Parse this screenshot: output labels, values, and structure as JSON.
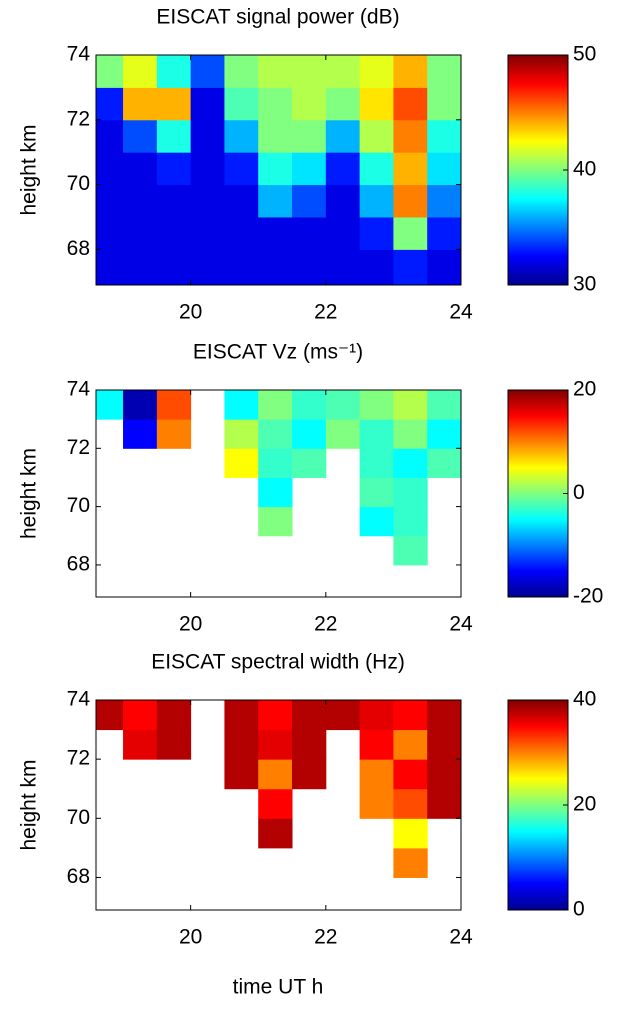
{
  "chart_data": [
    {
      "type": "heatmap",
      "title": "EISCAT signal power (dB)",
      "ylabel": "height km",
      "colormap": "jet",
      "xbins": [
        18.6,
        19,
        19.5,
        20,
        20.5,
        21,
        21.5,
        22,
        22.5,
        23,
        23.5,
        24
      ],
      "ybins": [
        66.9,
        68,
        69,
        70,
        71,
        72,
        73,
        74
      ],
      "z": [
        [
          32,
          32,
          32,
          32,
          32,
          32,
          32,
          32,
          32,
          33,
          32
        ],
        [
          32,
          32,
          32,
          32,
          32,
          32,
          32,
          32,
          33,
          40,
          33
        ],
        [
          32,
          32,
          32,
          32,
          32,
          36,
          34,
          32,
          36,
          45,
          35
        ],
        [
          32,
          32,
          33,
          32,
          33,
          38,
          37,
          33,
          38,
          44,
          37
        ],
        [
          32,
          34,
          38,
          32,
          36,
          40,
          40,
          36,
          41,
          45,
          38
        ],
        [
          33,
          44,
          44,
          32,
          39,
          40,
          41,
          40,
          43,
          46,
          40
        ],
        [
          40,
          42,
          38,
          34,
          40,
          41,
          41,
          41,
          42,
          44,
          40
        ]
      ],
      "xlim": [
        18.6,
        24
      ],
      "ylim": [
        66.9,
        74
      ],
      "xticks": [
        20,
        22,
        24
      ],
      "yticks": [
        68,
        70,
        72,
        74
      ],
      "clim": [
        30,
        50
      ],
      "cticks": [
        30,
        40,
        50
      ]
    },
    {
      "type": "heatmap",
      "title": "EISCAT Vz (ms⁻¹)",
      "ylabel": "height km",
      "colormap": "jet",
      "xbins": [
        18.6,
        19,
        19.5,
        20,
        20.5,
        21,
        21.5,
        22,
        22.5,
        23,
        23.5,
        24
      ],
      "ybins": [
        66.9,
        68,
        69,
        70,
        71,
        72,
        73,
        74
      ],
      "z": [
        [
          null,
          null,
          null,
          null,
          null,
          null,
          null,
          null,
          null,
          null,
          null
        ],
        [
          null,
          null,
          null,
          null,
          null,
          null,
          null,
          null,
          null,
          -2,
          null
        ],
        [
          null,
          null,
          null,
          null,
          null,
          0,
          null,
          null,
          -5,
          -3,
          null
        ],
        [
          null,
          null,
          null,
          null,
          null,
          -5,
          null,
          null,
          -2,
          -3,
          null
        ],
        [
          null,
          null,
          null,
          null,
          5,
          -3,
          -2,
          null,
          -3,
          -5,
          -2
        ],
        [
          null,
          -15,
          10,
          null,
          2,
          -2,
          -5,
          0,
          -3,
          0,
          -5
        ],
        [
          -5,
          -18,
          12,
          null,
          -5,
          0,
          -3,
          -2,
          0,
          2,
          -2
        ]
      ],
      "xlim": [
        18.6,
        24
      ],
      "ylim": [
        66.9,
        74
      ],
      "xticks": [
        20,
        22,
        24
      ],
      "yticks": [
        68,
        70,
        72,
        74
      ],
      "clim": [
        -20,
        20
      ],
      "cticks": [
        -20,
        0,
        20
      ]
    },
    {
      "type": "heatmap",
      "title": "EISCAT spectral width (Hz)",
      "ylabel": "height km",
      "xlabel": "time UT h",
      "colormap": "jet",
      "xbins": [
        18.6,
        19,
        19.5,
        20,
        20.5,
        21,
        21.5,
        22,
        22.5,
        23,
        23.5,
        24
      ],
      "ybins": [
        66.9,
        68,
        69,
        70,
        71,
        72,
        73,
        74
      ],
      "z": [
        [
          null,
          null,
          null,
          null,
          null,
          null,
          null,
          null,
          null,
          null,
          null
        ],
        [
          null,
          null,
          null,
          null,
          null,
          null,
          null,
          null,
          null,
          30,
          null
        ],
        [
          null,
          null,
          null,
          null,
          null,
          38,
          null,
          null,
          null,
          25,
          null
        ],
        [
          null,
          null,
          null,
          null,
          null,
          35,
          null,
          null,
          30,
          32,
          38
        ],
        [
          null,
          null,
          null,
          null,
          38,
          30,
          38,
          null,
          30,
          35,
          38
        ],
        [
          null,
          36,
          38,
          null,
          38,
          36,
          38,
          null,
          35,
          30,
          38
        ],
        [
          38,
          35,
          38,
          null,
          38,
          35,
          38,
          38,
          36,
          35,
          38
        ]
      ],
      "xlim": [
        18.6,
        24
      ],
      "ylim": [
        66.9,
        74
      ],
      "xticks": [
        20,
        22,
        24
      ],
      "yticks": [
        68,
        70,
        72,
        74
      ],
      "clim": [
        0,
        40
      ],
      "cticks": [
        0,
        20,
        40
      ]
    }
  ]
}
